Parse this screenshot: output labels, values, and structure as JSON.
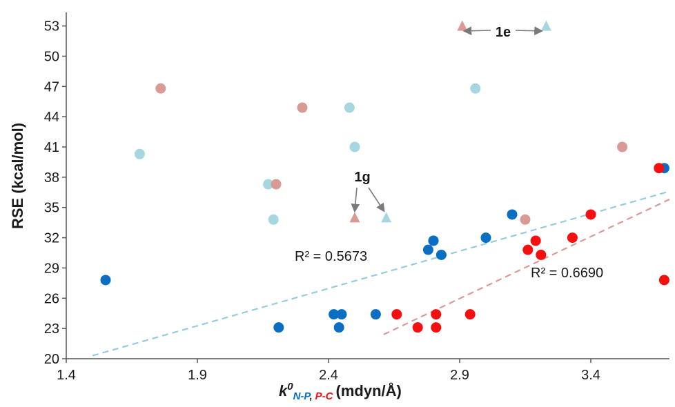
{
  "chart_data": {
    "type": "scatter",
    "ylabel": "RSE (kcal/mol)",
    "xlabel": {
      "main": "k",
      "sup": "0",
      "sub_np": "N-P",
      "sep": ",",
      "sub_pc": "P-C",
      "unit": "(mdyn/Å)"
    },
    "xlim": [
      1.4,
      3.7
    ],
    "ylim": [
      20,
      54
    ],
    "xticks": [
      1.4,
      1.9,
      2.4,
      2.9,
      3.4
    ],
    "yticks": [
      20,
      23,
      26,
      29,
      32,
      35,
      38,
      41,
      44,
      47,
      50,
      53
    ],
    "colors": {
      "np": "#0a6fc2",
      "pc": "#f50f0f",
      "np_light": "#a6d6e0",
      "pc_light": "#d99a96",
      "np_trend": "#93cce0",
      "pc_trend": "#d99a96",
      "arrow": "#7a7a7a"
    },
    "series": [
      {
        "key": "np",
        "marker": "circle",
        "points": [
          [
            1.55,
            27.8
          ],
          [
            2.21,
            23.1
          ],
          [
            2.42,
            24.4
          ],
          [
            2.44,
            23.1
          ],
          [
            2.45,
            24.4
          ],
          [
            2.58,
            24.4
          ],
          [
            2.78,
            30.8
          ],
          [
            2.8,
            31.7
          ],
          [
            2.8,
            31.7
          ],
          [
            2.83,
            30.3
          ],
          [
            3.0,
            32.0
          ],
          [
            3.1,
            34.3
          ],
          [
            3.68,
            38.9
          ]
        ]
      },
      {
        "key": "pc",
        "marker": "circle",
        "points": [
          [
            2.66,
            24.4
          ],
          [
            2.74,
            23.1
          ],
          [
            2.81,
            23.1
          ],
          [
            2.81,
            24.4
          ],
          [
            2.94,
            24.4
          ],
          [
            3.16,
            30.8
          ],
          [
            3.19,
            31.7
          ],
          [
            3.21,
            30.3
          ],
          [
            3.33,
            32.0
          ],
          [
            3.4,
            34.3
          ],
          [
            3.66,
            38.9
          ],
          [
            3.68,
            27.8
          ]
        ]
      },
      {
        "key": "np_light",
        "marker": "circle",
        "points": [
          [
            1.68,
            40.3
          ],
          [
            2.17,
            37.3
          ],
          [
            2.19,
            33.8
          ],
          [
            2.48,
            44.9
          ],
          [
            2.5,
            41.0
          ],
          [
            2.96,
            46.8
          ]
        ]
      },
      {
        "key": "pc_light",
        "marker": "circle",
        "points": [
          [
            1.76,
            46.8
          ],
          [
            2.2,
            37.3
          ],
          [
            2.3,
            44.9
          ],
          [
            3.15,
            33.8
          ],
          [
            3.52,
            41.0
          ]
        ]
      },
      {
        "key": "np_light",
        "marker": "triangle",
        "points": [
          [
            2.62,
            34.0
          ],
          [
            3.23,
            53.0
          ]
        ]
      },
      {
        "key": "pc_light",
        "marker": "triangle",
        "points": [
          [
            2.5,
            34.0
          ],
          [
            2.91,
            53.0
          ]
        ]
      }
    ],
    "trendlines": [
      {
        "key": "np_trend",
        "x": [
          1.5,
          3.7
        ],
        "y": [
          20.3,
          36.6
        ],
        "r2": "R² = 0.5673"
      },
      {
        "key": "pc_trend",
        "x": [
          2.61,
          3.7
        ],
        "y": [
          22.4,
          35.8
        ],
        "r2": "R² = 0.6690"
      }
    ],
    "annotations": [
      {
        "label": "1e",
        "arrows": [
          [
            2.92,
            52.5
          ],
          [
            3.21,
            52.5
          ]
        ]
      },
      {
        "label": "1g",
        "arrows": [
          [
            2.5,
            34.7
          ],
          [
            2.61,
            34.7
          ]
        ]
      }
    ]
  }
}
